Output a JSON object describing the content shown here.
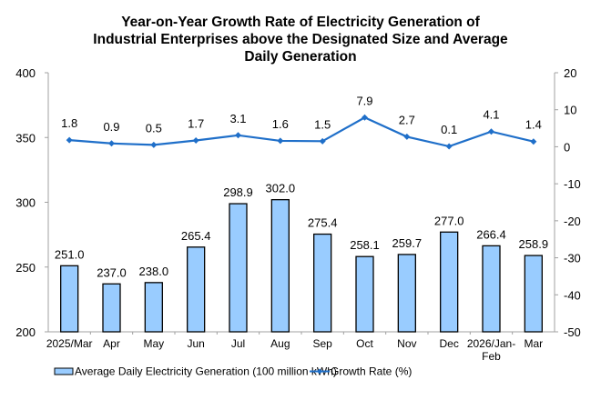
{
  "chart_data": {
    "type": "bar+line",
    "title": [
      "Year-on-Year Growth Rate of Electricity Generation of",
      "Industrial Enterprises above the Designated Size and Average",
      "Daily Generation"
    ],
    "categories": [
      "2025/Mar",
      "Apr",
      "May",
      "Jun",
      "Jul",
      "Aug",
      "Sep",
      "Oct",
      "Nov",
      "Dec",
      "2026/Jan-Feb",
      "Mar"
    ],
    "category_lines": [
      [
        "2025/Mar"
      ],
      [
        "Apr"
      ],
      [
        "May"
      ],
      [
        "Jun"
      ],
      [
        "Jul"
      ],
      [
        "Aug"
      ],
      [
        "Sep"
      ],
      [
        "Oct"
      ],
      [
        "Nov"
      ],
      [
        "Dec"
      ],
      [
        "2026/Jan-",
        "Feb"
      ],
      [
        "Mar"
      ]
    ],
    "series": [
      {
        "name": "Average Daily Electricity Generation (100 million kWh)",
        "type": "bar",
        "axis": "left",
        "color": "#99ccff",
        "values": [
          251.0,
          237.0,
          238.0,
          265.4,
          298.9,
          302.0,
          275.4,
          258.1,
          259.7,
          277.0,
          266.4,
          258.9
        ],
        "labels": [
          "251.0",
          "237.0",
          "238.0",
          "265.4",
          "298.9",
          "302.0",
          "275.4",
          "258.1",
          "259.7",
          "277.0",
          "266.4",
          "258.9"
        ]
      },
      {
        "name": "Growth Rate (%)",
        "type": "line",
        "axis": "right",
        "color": "#1f6fc9",
        "values": [
          1.8,
          0.9,
          0.5,
          1.7,
          3.1,
          1.6,
          1.5,
          7.9,
          2.7,
          0.1,
          4.1,
          1.4
        ],
        "labels": [
          "1.8",
          "0.9",
          "0.5",
          "1.7",
          "3.1",
          "1.6",
          "1.5",
          "7.9",
          "2.7",
          "0.1",
          "4.1",
          "1.4"
        ]
      }
    ],
    "y_left": {
      "range": [
        200,
        400
      ],
      "ticks": [
        200,
        250,
        300,
        350,
        400
      ]
    },
    "y_right": {
      "range": [
        -50,
        20
      ],
      "ticks": [
        -50,
        -40,
        -30,
        -20,
        -10,
        0,
        10,
        20
      ]
    },
    "grid": false,
    "legend_position": "bottom"
  }
}
